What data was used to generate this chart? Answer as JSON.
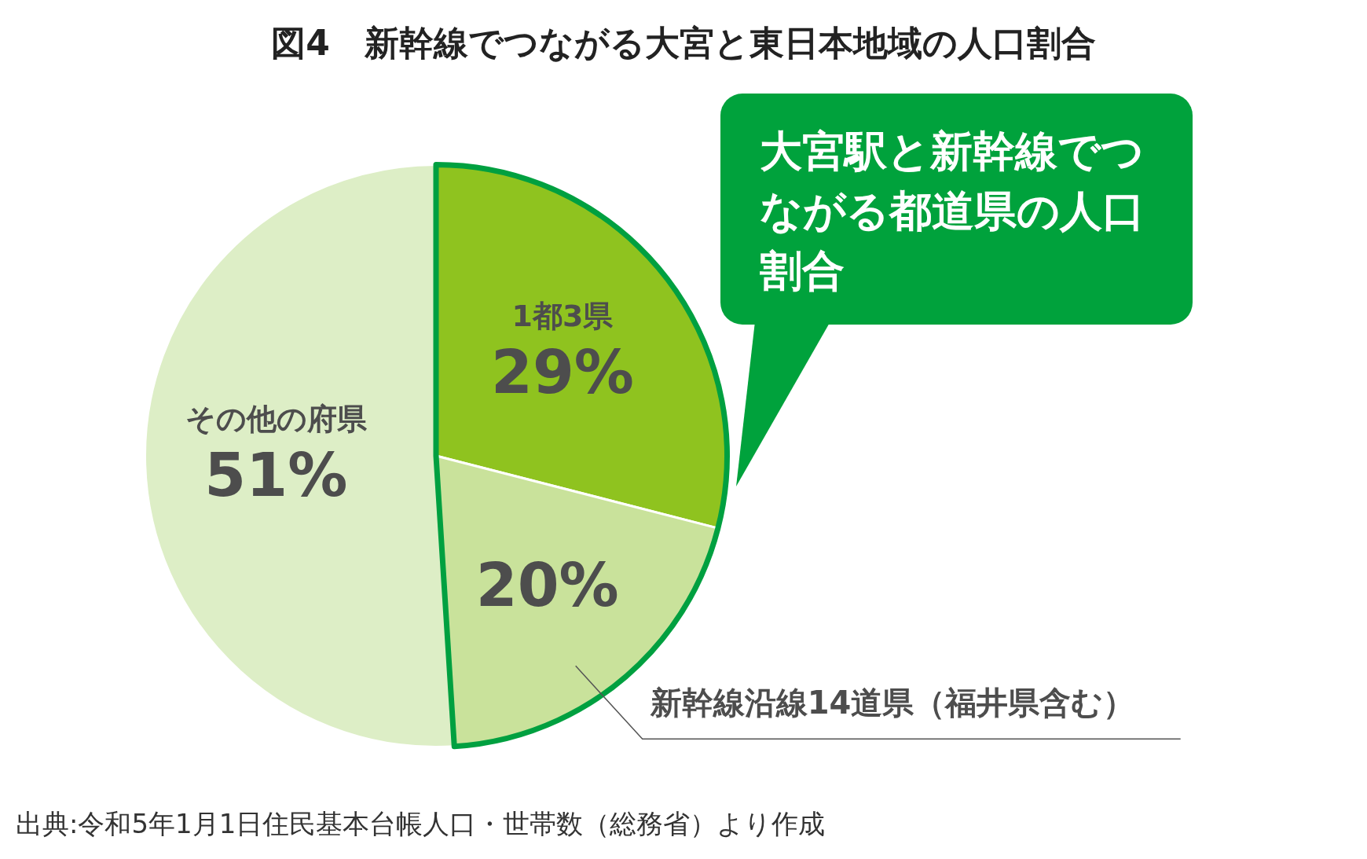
{
  "chart_data": {
    "type": "pie",
    "title": "図4　新幹線でつながる大宮と東日本地域の人口割合",
    "categories": [
      "1都3県",
      "新幹線沿線14道県（福井県含む）",
      "その他の府県"
    ],
    "values": [
      29,
      20,
      51
    ],
    "value_labels": [
      "29%",
      "20%",
      "51%"
    ],
    "colors": [
      "#8fc31f",
      "#c9e29b",
      "#ddeec6"
    ],
    "annotations": [
      "大宮駅と新幹線でつながる都道県の人口割合",
      "出典:令和5年1月1日住民基本台帳人口・世帯数（総務省）より作成"
    ]
  }
}
